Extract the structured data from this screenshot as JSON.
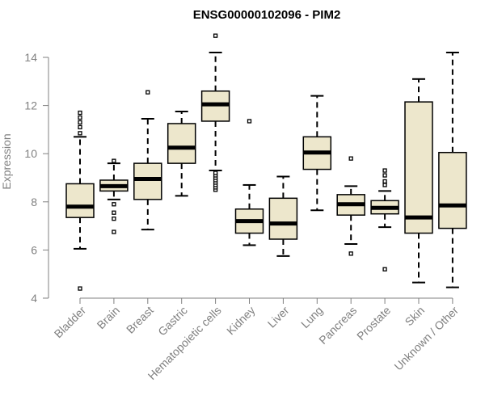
{
  "chart_data": {
    "type": "boxplot",
    "title": "ENSG00000102096 - PIM2",
    "xlabel": "",
    "ylabel": "Expression",
    "ylim": [
      4,
      15
    ],
    "yticks": [
      4,
      6,
      8,
      10,
      12,
      14
    ],
    "colors": {
      "box_fill": "#ede7cc",
      "stroke": "#000000",
      "axis": "#808080"
    },
    "categories": [
      "Bladder",
      "Brain",
      "Breast",
      "Gastric",
      "Hematopoietic cells",
      "Kidney",
      "Liver",
      "Lung",
      "Pancreas",
      "Prostate",
      "Skin",
      "Unknown / Other"
    ],
    "boxes": [
      {
        "name": "Bladder",
        "whisker_low": 6.05,
        "q1": 7.35,
        "median": 7.8,
        "q3": 8.75,
        "whisker_high": 10.7,
        "outliers": [
          4.4,
          10.85,
          11.1,
          11.3,
          11.5,
          11.7
        ]
      },
      {
        "name": "Brain",
        "whisker_low": 8.1,
        "q1": 8.45,
        "median": 8.65,
        "q3": 8.9,
        "whisker_high": 9.6,
        "outliers": [
          6.75,
          7.3,
          7.55,
          7.9,
          9.7
        ]
      },
      {
        "name": "Breast",
        "whisker_low": 6.85,
        "q1": 8.1,
        "median": 8.95,
        "q3": 9.6,
        "whisker_high": 11.45,
        "outliers": [
          12.55
        ]
      },
      {
        "name": "Gastric",
        "whisker_low": 8.25,
        "q1": 9.6,
        "median": 10.25,
        "q3": 11.25,
        "whisker_high": 11.75,
        "outliers": []
      },
      {
        "name": "Hematopoietic cells",
        "whisker_low": 9.3,
        "q1": 11.35,
        "median": 12.05,
        "q3": 12.6,
        "whisker_high": 14.2,
        "outliers": [
          8.5,
          8.6,
          8.7,
          8.8,
          8.9,
          9.0,
          9.1,
          9.2,
          14.9
        ]
      },
      {
        "name": "Kidney",
        "whisker_low": 6.2,
        "q1": 6.7,
        "median": 7.2,
        "q3": 7.7,
        "whisker_high": 8.7,
        "outliers": [
          11.35
        ]
      },
      {
        "name": "Liver",
        "whisker_low": 5.75,
        "q1": 6.45,
        "median": 7.1,
        "q3": 8.15,
        "whisker_high": 9.05,
        "outliers": []
      },
      {
        "name": "Lung",
        "whisker_low": 7.65,
        "q1": 9.35,
        "median": 10.05,
        "q3": 10.7,
        "whisker_high": 12.4,
        "outliers": []
      },
      {
        "name": "Pancreas",
        "whisker_low": 6.25,
        "q1": 7.45,
        "median": 7.9,
        "q3": 8.3,
        "whisker_high": 8.65,
        "outliers": [
          5.85,
          9.8
        ]
      },
      {
        "name": "Prostate",
        "whisker_low": 6.95,
        "q1": 7.5,
        "median": 7.75,
        "q3": 8.05,
        "whisker_high": 8.45,
        "outliers": [
          5.2,
          8.7,
          8.85,
          9.1,
          9.3
        ]
      },
      {
        "name": "Skin",
        "whisker_low": 4.65,
        "q1": 6.7,
        "median": 7.35,
        "q3": 12.15,
        "whisker_high": 13.1,
        "outliers": []
      },
      {
        "name": "Unknown / Other",
        "whisker_low": 4.45,
        "q1": 6.9,
        "median": 7.85,
        "q3": 10.05,
        "whisker_high": 14.2,
        "outliers": []
      }
    ]
  }
}
